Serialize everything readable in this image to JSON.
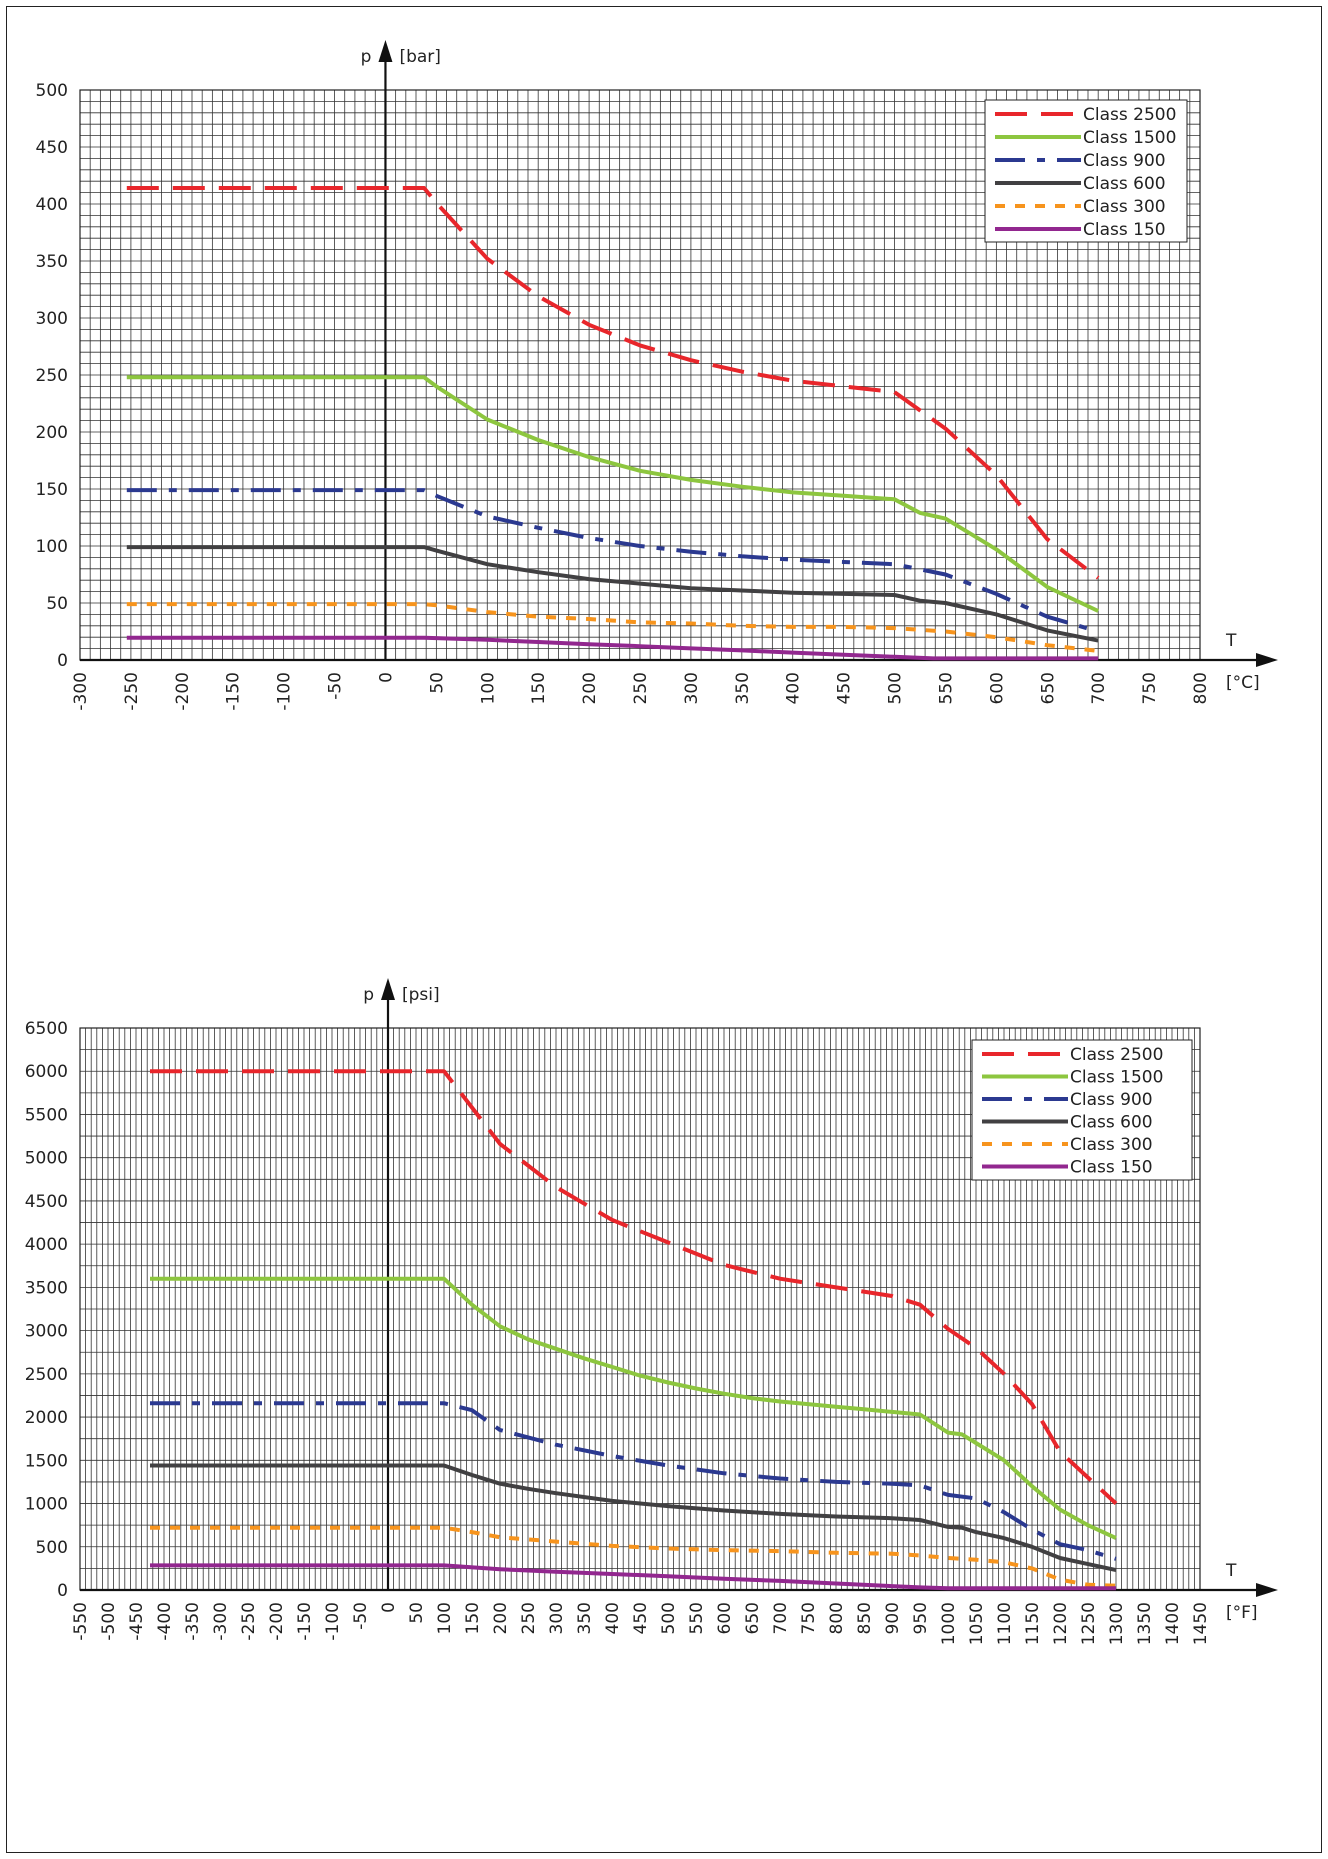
{
  "chart_data": [
    {
      "type": "line",
      "xlabel": "T",
      "x_unit": "[°C]",
      "ylabel": "p",
      "y_unit": "[bar]",
      "xlim": [
        -300,
        800
      ],
      "ylim": [
        0,
        500
      ],
      "x_ticks": [
        -300,
        -250,
        -200,
        -150,
        -100,
        -50,
        0,
        50,
        100,
        150,
        200,
        250,
        300,
        350,
        400,
        450,
        500,
        550,
        600,
        650,
        700,
        750,
        800
      ],
      "y_ticks": [
        0,
        50,
        100,
        150,
        200,
        250,
        300,
        350,
        400,
        450,
        500
      ],
      "grid": true,
      "legend": "top-right",
      "series": [
        {
          "name": "Class 2500",
          "color": "#e8262b",
          "style": "dashed",
          "x": [
            -254,
            38,
            50,
            100,
            150,
            200,
            250,
            300,
            350,
            400,
            450,
            500,
            550,
            600,
            650,
            700
          ],
          "y": [
            414,
            414,
            401,
            352,
            319,
            294,
            276,
            263,
            253,
            245,
            240,
            235,
            203,
            162,
            106,
            72
          ]
        },
        {
          "name": "Class 1500",
          "color": "#8dc63f",
          "style": "solid",
          "x": [
            -254,
            38,
            50,
            100,
            150,
            200,
            250,
            300,
            350,
            400,
            450,
            500,
            525,
            550,
            600,
            650,
            700
          ],
          "y": [
            248,
            248,
            240,
            211,
            193,
            178,
            166,
            158,
            152,
            147,
            144,
            141,
            129,
            124,
            97,
            64,
            43
          ]
        },
        {
          "name": "Class 900",
          "color": "#2b3990",
          "style": "dashdot",
          "x": [
            -254,
            38,
            50,
            100,
            150,
            200,
            250,
            300,
            350,
            400,
            450,
            500,
            550,
            600,
            650,
            700
          ],
          "y": [
            149,
            149,
            144,
            126,
            116,
            107,
            100,
            95,
            91,
            88,
            86,
            84,
            75,
            58,
            38,
            25
          ]
        },
        {
          "name": "Class 600",
          "color": "#414042",
          "style": "solid",
          "x": [
            -254,
            38,
            50,
            100,
            150,
            200,
            250,
            300,
            350,
            400,
            450,
            500,
            525,
            550,
            600,
            650,
            700
          ],
          "y": [
            99,
            99,
            96,
            84,
            77,
            71,
            67,
            63,
            61,
            59,
            58,
            57,
            52,
            50,
            40,
            26,
            17
          ]
        },
        {
          "name": "Class 300",
          "color": "#f7941d",
          "style": "dotted",
          "x": [
            -254,
            38,
            50,
            100,
            150,
            200,
            250,
            300,
            350,
            400,
            450,
            500,
            550,
            600,
            650,
            700
          ],
          "y": [
            49,
            49,
            48,
            42,
            38,
            36,
            33,
            32,
            30,
            29,
            29,
            28,
            25,
            20,
            13,
            8
          ]
        },
        {
          "name": "Class 150",
          "color": "#92278f",
          "style": "solid",
          "x": [
            -254,
            38,
            50,
            100,
            150,
            200,
            250,
            300,
            350,
            400,
            450,
            500,
            538,
            550,
            600,
            650,
            700
          ],
          "y": [
            19.6,
            19.6,
            19.2,
            17.7,
            15.8,
            13.8,
            12.1,
            10.2,
            8.4,
            6.5,
            4.6,
            2.8,
            1.4,
            1.4,
            1.4,
            1.4,
            1.4
          ]
        }
      ]
    },
    {
      "type": "line",
      "xlabel": "T",
      "x_unit": "[°F]",
      "ylabel": "p",
      "y_unit": "[psi]",
      "xlim": [
        -550,
        1450
      ],
      "ylim": [
        0,
        6500
      ],
      "x_ticks": [
        -550,
        -500,
        -450,
        -400,
        -350,
        -300,
        -250,
        -200,
        -150,
        -100,
        -50,
        0,
        50,
        100,
        150,
        200,
        250,
        300,
        350,
        400,
        450,
        500,
        550,
        600,
        650,
        700,
        750,
        800,
        850,
        900,
        950,
        1000,
        1050,
        1100,
        1150,
        1200,
        1250,
        1300,
        1350,
        1400,
        1450
      ],
      "y_ticks": [
        0,
        500,
        1000,
        1500,
        2000,
        2500,
        3000,
        3500,
        4000,
        4500,
        5000,
        5500,
        6000,
        6500
      ],
      "grid": true,
      "legend": "top-right",
      "series": [
        {
          "name": "Class 2500",
          "color": "#e8262b",
          "style": "dashed",
          "x": [
            -425,
            100,
            200,
            300,
            400,
            500,
            600,
            700,
            800,
            900,
            950,
            1000,
            1050,
            1100,
            1150,
            1200,
            1250,
            1300
          ],
          "y": [
            6000,
            6000,
            5160,
            4660,
            4280,
            4020,
            3760,
            3600,
            3500,
            3400,
            3300,
            3020,
            2800,
            2500,
            2150,
            1600,
            1300,
            1000
          ]
        },
        {
          "name": "Class 1500",
          "color": "#8dc63f",
          "style": "solid",
          "x": [
            -425,
            100,
            150,
            200,
            250,
            300,
            350,
            400,
            450,
            500,
            550,
            600,
            650,
            700,
            750,
            800,
            850,
            900,
            950,
            1000,
            1025,
            1050,
            1100,
            1150,
            1200,
            1250,
            1300
          ],
          "y": [
            3600,
            3600,
            3300,
            3050,
            2900,
            2790,
            2680,
            2580,
            2480,
            2400,
            2330,
            2270,
            2220,
            2180,
            2150,
            2120,
            2090,
            2060,
            2030,
            1820,
            1800,
            1700,
            1500,
            1200,
            930,
            750,
            600
          ]
        },
        {
          "name": "Class 900",
          "color": "#2b3990",
          "style": "dashdot",
          "x": [
            -425,
            100,
            150,
            200,
            300,
            400,
            500,
            600,
            700,
            800,
            900,
            950,
            1000,
            1050,
            1100,
            1150,
            1200,
            1250,
            1300
          ],
          "y": [
            2160,
            2160,
            2080,
            1850,
            1680,
            1550,
            1440,
            1350,
            1290,
            1250,
            1230,
            1210,
            1100,
            1060,
            900,
            700,
            530,
            460,
            360
          ]
        },
        {
          "name": "Class 600",
          "color": "#414042",
          "style": "solid",
          "x": [
            -425,
            100,
            150,
            200,
            250,
            300,
            400,
            500,
            600,
            700,
            800,
            900,
            950,
            1000,
            1025,
            1050,
            1100,
            1150,
            1200,
            1250,
            1300
          ],
          "y": [
            1440,
            1440,
            1330,
            1230,
            1170,
            1120,
            1030,
            970,
            920,
            880,
            850,
            830,
            810,
            730,
            720,
            670,
            600,
            500,
            370,
            300,
            230
          ]
        },
        {
          "name": "Class 300",
          "color": "#f7941d",
          "style": "dotted",
          "x": [
            -425,
            100,
            150,
            200,
            300,
            400,
            500,
            600,
            700,
            800,
            900,
            950,
            1000,
            1050,
            1100,
            1150,
            1200,
            1250,
            1300
          ],
          "y": [
            720,
            720,
            670,
            610,
            560,
            510,
            480,
            460,
            450,
            430,
            420,
            400,
            370,
            350,
            320,
            250,
            120,
            60,
            50
          ]
        },
        {
          "name": "Class 150",
          "color": "#92278f",
          "style": "solid",
          "x": [
            -425,
            100,
            200,
            300,
            400,
            500,
            600,
            700,
            800,
            900,
            950,
            1000,
            1050,
            1100,
            1150,
            1200,
            1250,
            1300
          ],
          "y": [
            285,
            285,
            240,
            210,
            185,
            160,
            130,
            105,
            75,
            45,
            30,
            20,
            20,
            20,
            20,
            20,
            20,
            20
          ]
        }
      ]
    }
  ]
}
